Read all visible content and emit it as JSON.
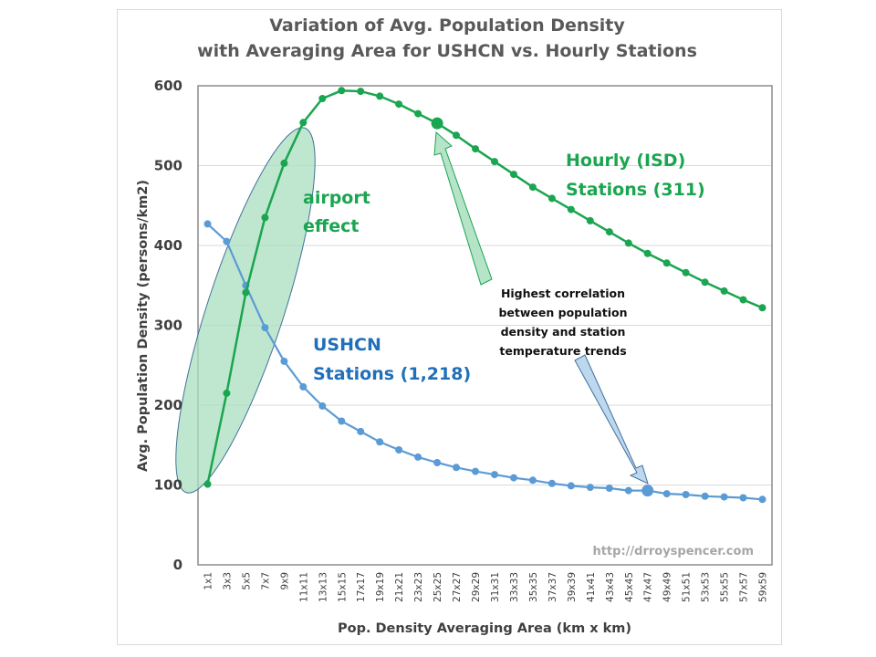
{
  "chart_data": {
    "type": "line",
    "title_lines": [
      "Variation of Avg. Population Density",
      "with Averaging Area for USHCN vs. Hourly Stations"
    ],
    "xlabel": "Pop. Density Averaging Area (km x km)",
    "ylabel": "Avg. Population Density (persons/km2)",
    "ylim": [
      0,
      600
    ],
    "yticks": [
      0,
      100,
      200,
      300,
      400,
      500,
      600
    ],
    "grid": true,
    "categories": [
      "1x1",
      "3x3",
      "5x5",
      "7x7",
      "9x9",
      "11x11",
      "13x13",
      "15x15",
      "17x17",
      "19x19",
      "21x21",
      "23x23",
      "25x25",
      "27x27",
      "29x29",
      "31x31",
      "33x33",
      "35x35",
      "37x37",
      "39x39",
      "41x41",
      "43x43",
      "45x45",
      "47x47",
      "49x49",
      "51x51",
      "53x53",
      "55x55",
      "57x57",
      "59x59"
    ],
    "series": [
      {
        "name": "Hourly (ISD) Stations (311)",
        "color": "#1aa550",
        "values": [
          101,
          215,
          341,
          435,
          503,
          554,
          584,
          594,
          593,
          587,
          577,
          565,
          553,
          538,
          521,
          505,
          489,
          473,
          459,
          445,
          431,
          417,
          403,
          390,
          378,
          366,
          354,
          343,
          332,
          322
        ],
        "highlight_category": "25x25"
      },
      {
        "name": "USHCN Stations (1,218)",
        "color": "#5b9bd5",
        "values": [
          427,
          405,
          350,
          297,
          255,
          223,
          199,
          180,
          167,
          154,
          144,
          135,
          128,
          122,
          117,
          113,
          109,
          106,
          102,
          99,
          97,
          96,
          93,
          93,
          89,
          88,
          86,
          85,
          84,
          82
        ],
        "highlight_category": "47x47"
      }
    ],
    "annotations": {
      "airport_effect": [
        "airport",
        "effect"
      ],
      "hourly_label": [
        "Hourly (ISD)",
        "Stations (311)"
      ],
      "ushcn_label": [
        "USHCN",
        "Stations (1,218)"
      ],
      "correlation_note": [
        "Highest correlation",
        "between population",
        "density and station",
        "temperature trends"
      ],
      "watermark": "http://drroyspencer.com"
    }
  }
}
